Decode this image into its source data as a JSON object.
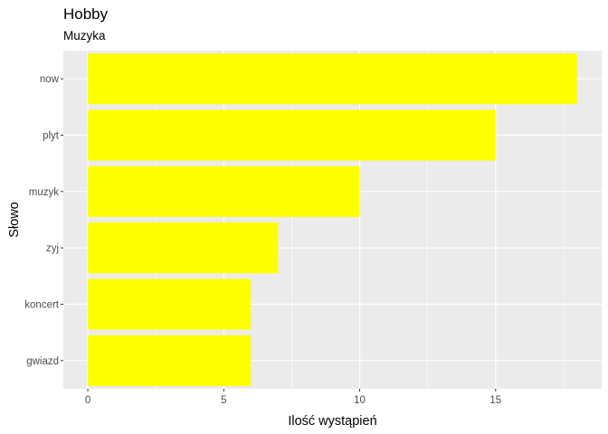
{
  "chart_data": {
    "type": "bar",
    "orientation": "horizontal",
    "title": "Hobby",
    "subtitle": "Muzyka",
    "xlabel": "Ilość wystąpień",
    "ylabel": "Słowo",
    "categories": [
      "now",
      "plyt",
      "muzyk",
      "zyj",
      "koncert",
      "gwiazd"
    ],
    "values": [
      18,
      15,
      10,
      7,
      6,
      6
    ],
    "xlim": [
      -0.9,
      18.9
    ],
    "xticks": [
      0,
      5,
      10,
      15
    ],
    "xtick_labels": [
      "0",
      "5",
      "10",
      "15"
    ],
    "bar_color": "#FFFF00",
    "panel_color": "#EBEBEB",
    "grid_color": "#FFFFFF",
    "grid": true,
    "legend": "none"
  }
}
